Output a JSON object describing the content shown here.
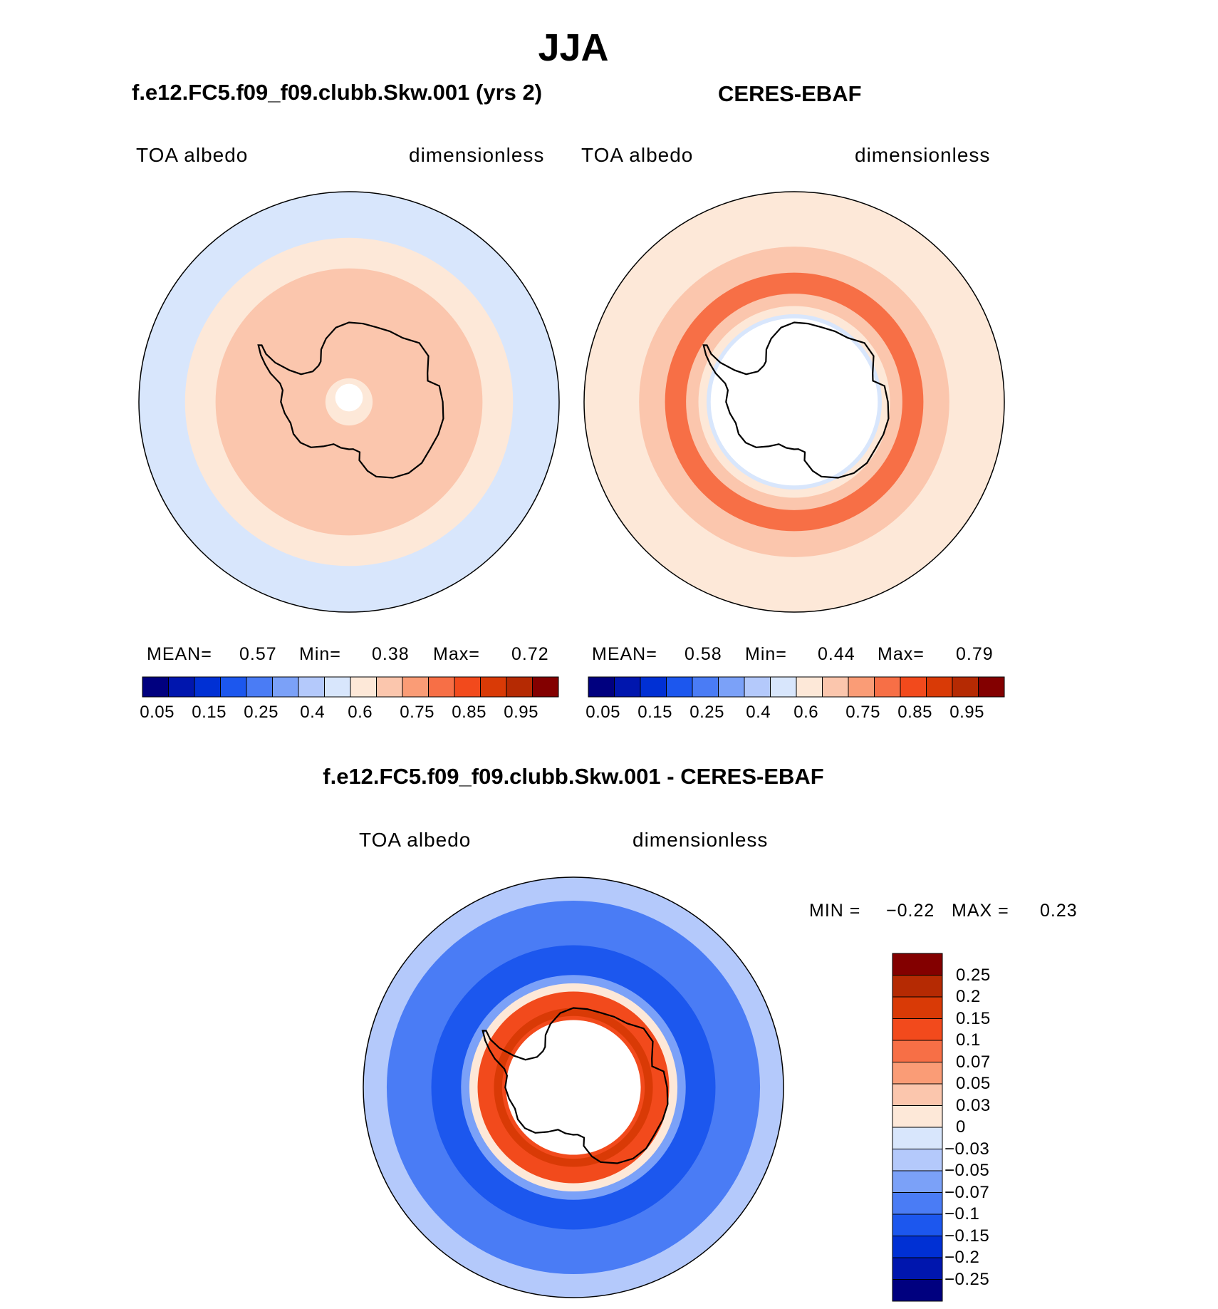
{
  "figure": {
    "title": "JJA",
    "colors": {
      "abs": [
        "#00007f",
        "#0016ae",
        "#0030d4",
        "#1c57ee",
        "#4a7cf5",
        "#7ba1f8",
        "#b4c9fb",
        "#d8e6fc",
        "#fde8d8",
        "#fbc6ad",
        "#fa9c76",
        "#f76f46",
        "#f24a1c",
        "#d93a06",
        "#b52a03",
        "#830000"
      ],
      "diff": [
        "#00007f",
        "#0016ae",
        "#0030d4",
        "#1c57ee",
        "#4a7cf5",
        "#7ba1f8",
        "#b4c9fb",
        "#d8e6fc",
        "#fde8d8",
        "#fbc6ad",
        "#fa9c76",
        "#f76f46",
        "#f24a1c",
        "#d93a06",
        "#b52a03",
        "#830000"
      ]
    }
  },
  "chart_data": [
    {
      "type": "heatmap",
      "projection": "south polar stereographic",
      "title": "f.e12.FC5.f09_f09.clubb.Skw.001 (yrs 2)",
      "variable": "TOA albedo",
      "units": "dimensionless",
      "stats": {
        "mean_label": "MEAN=",
        "mean": "0.57",
        "min_label": "Min=",
        "min": "0.38",
        "max_label": "Max=",
        "max": "0.72"
      },
      "colorbar_ticks": [
        "0.05",
        "0.15",
        "0.25",
        "0.4",
        "0.6",
        "0.75",
        "0.85",
        "0.95"
      ],
      "field_rings": [
        {
          "lat": -40,
          "value": 0.4
        },
        {
          "lat": -50,
          "value": 0.55
        },
        {
          "lat": -57,
          "value": 0.65
        },
        {
          "lat": -80,
          "value": 0.65
        },
        {
          "lat": -84,
          "value": 0.55
        }
      ]
    },
    {
      "type": "heatmap",
      "projection": "south polar stereographic",
      "title": "CERES-EBAF",
      "variable": "TOA albedo",
      "units": "dimensionless",
      "stats": {
        "mean_label": "MEAN=",
        "mean": "0.58",
        "min_label": "Min=",
        "min": "0.44",
        "max_label": "Max=",
        "max": "0.79"
      },
      "colorbar_ticks": [
        "0.05",
        "0.15",
        "0.25",
        "0.4",
        "0.6",
        "0.75",
        "0.85",
        "0.95"
      ],
      "field_rings": [
        {
          "lat": -40,
          "value": 0.55
        },
        {
          "lat": -52,
          "value": 0.65
        },
        {
          "lat": -58,
          "value": 0.75
        },
        {
          "lat": -63,
          "value": 0.65
        },
        {
          "lat": -66,
          "value": 0.55
        },
        {
          "lat": -68,
          "value": 0.45
        }
      ]
    },
    {
      "type": "heatmap",
      "projection": "south polar stereographic",
      "title": "f.e12.FC5.f09_f09.clubb.Skw.001 - CERES-EBAF",
      "variable": "TOA albedo",
      "units": "dimensionless",
      "stats": {
        "min_label": "MIN =",
        "min": "−0.22",
        "max_label": "MAX =",
        "max": "0.23"
      },
      "colorbar_ticks": [
        "0.25",
        "0.2",
        "0.15",
        "0.1",
        "0.07",
        "0.05",
        "0.03",
        "0",
        "−0.03",
        "−0.05",
        "−0.07",
        "−0.1",
        "−0.15",
        "−0.2",
        "−0.25"
      ],
      "field_rings": [
        {
          "lat": -40,
          "value": -0.04
        },
        {
          "lat": -45,
          "value": -0.09
        },
        {
          "lat": -55,
          "value": -0.12
        },
        {
          "lat": -62,
          "value": -0.06
        },
        {
          "lat": -64,
          "value": 0.02
        },
        {
          "lat": -66,
          "value": 0.12
        },
        {
          "lat": -70,
          "value": 0.18
        },
        {
          "lat": -72,
          "value": 0.12
        }
      ]
    }
  ]
}
